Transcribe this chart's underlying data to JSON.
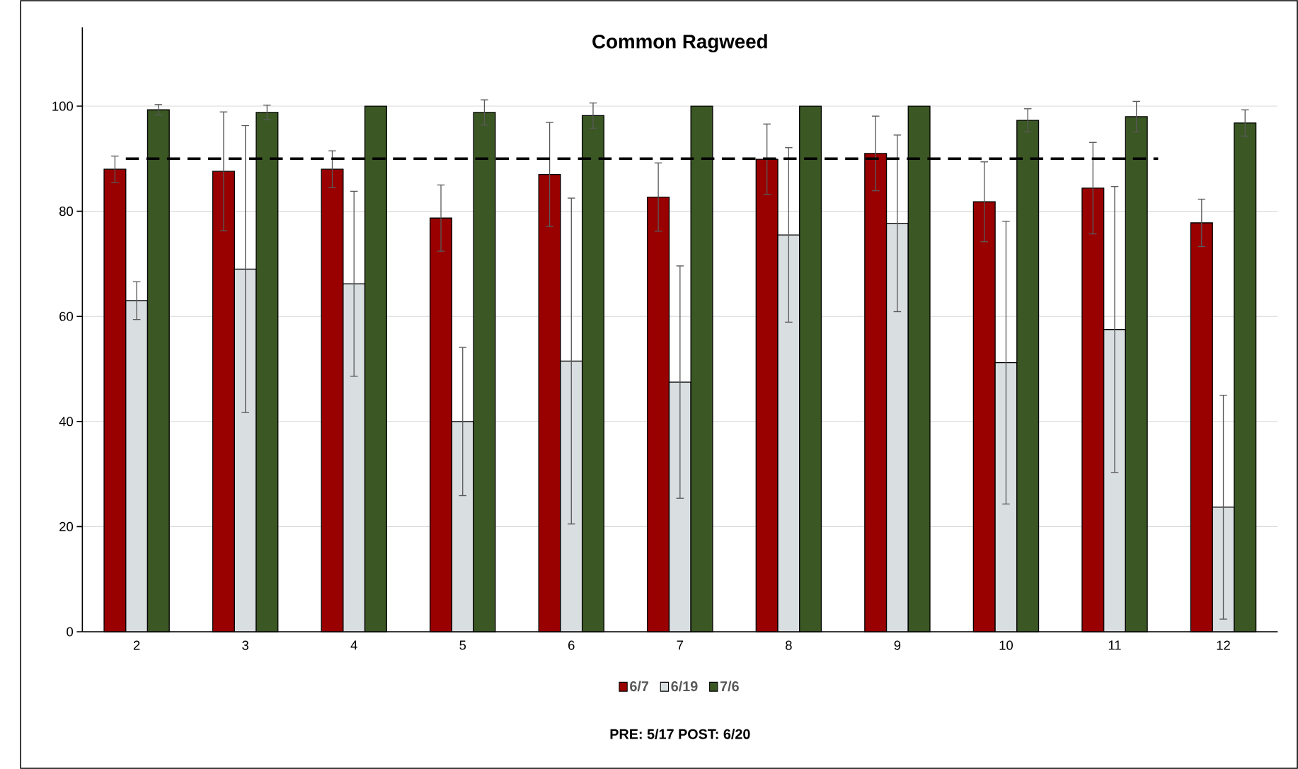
{
  "chart_data": {
    "type": "bar",
    "title": "Common Ragweed",
    "categories": [
      "2",
      "3",
      "4",
      "5",
      "6",
      "7",
      "8",
      "9",
      "10",
      "11",
      "12"
    ],
    "series": [
      {
        "name": "6/7",
        "color": "#990000",
        "values": [
          88.0,
          87.6,
          88.0,
          78.7,
          87.0,
          82.7,
          89.9,
          91.0,
          81.8,
          84.4,
          77.8
        ],
        "errors": [
          2.5,
          11.3,
          3.5,
          6.3,
          9.9,
          6.5,
          6.7,
          7.1,
          7.6,
          8.7,
          4.5
        ]
      },
      {
        "name": "6/19",
        "color": "#d9dee1",
        "values": [
          63.0,
          69.0,
          66.2,
          40.0,
          51.5,
          47.5,
          75.5,
          77.7,
          51.2,
          57.5,
          23.7
        ],
        "errors": [
          3.6,
          27.3,
          17.6,
          14.1,
          31.0,
          22.1,
          16.6,
          16.8,
          26.9,
          27.2,
          21.3
        ]
      },
      {
        "name": "7/6",
        "color": "#3b5723",
        "values": [
          99.3,
          98.8,
          100,
          98.8,
          98.2,
          100,
          100,
          100,
          97.3,
          98.0,
          96.8
        ],
        "errors": [
          1.0,
          1.4,
          null,
          2.4,
          2.4,
          null,
          null,
          null,
          2.2,
          2.9,
          2.5
        ]
      }
    ],
    "ylim": [
      0,
      115
    ],
    "yticks": [
      0,
      20,
      40,
      60,
      80,
      100
    ],
    "grid": "y",
    "legend": "bottom",
    "ref_lines": [
      {
        "axis": "y",
        "value": 90,
        "color": "#000000",
        "line_style": "dashed"
      }
    ],
    "annotations": [
      "PRE: 5/17   POST: 6/20"
    ]
  }
}
